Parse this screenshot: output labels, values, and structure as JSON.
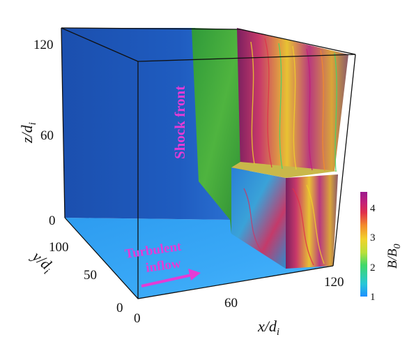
{
  "annotations": {
    "shock_front": "Shock front",
    "inflow_line1": "Turbulent",
    "inflow_line2": "inflow"
  },
  "axes": {
    "z_label": "z/d",
    "z_sub": "i",
    "y_label": "y/d",
    "y_sub": "i",
    "x_label": "x/d",
    "x_sub": "i",
    "z_ticks": [
      "120",
      "60",
      "0"
    ],
    "y_ticks": [
      "100",
      "50",
      "0"
    ],
    "x_ticks": [
      "0",
      "60",
      "120"
    ]
  },
  "colorbar": {
    "label": "B/B",
    "label_sub": "0",
    "ticks": [
      "4",
      "3",
      "2",
      "1"
    ],
    "colors": [
      "#1e8fff",
      "#27c7d8",
      "#3fd86a",
      "#b9e03a",
      "#f2d22a",
      "#f38b2b",
      "#e0304a",
      "#c2207a",
      "#9b1a8e"
    ]
  },
  "colors": {
    "accent_magenta": "#e43bd6",
    "upstream_field": "#1d56b8",
    "floor": "#3aa8f5"
  }
}
